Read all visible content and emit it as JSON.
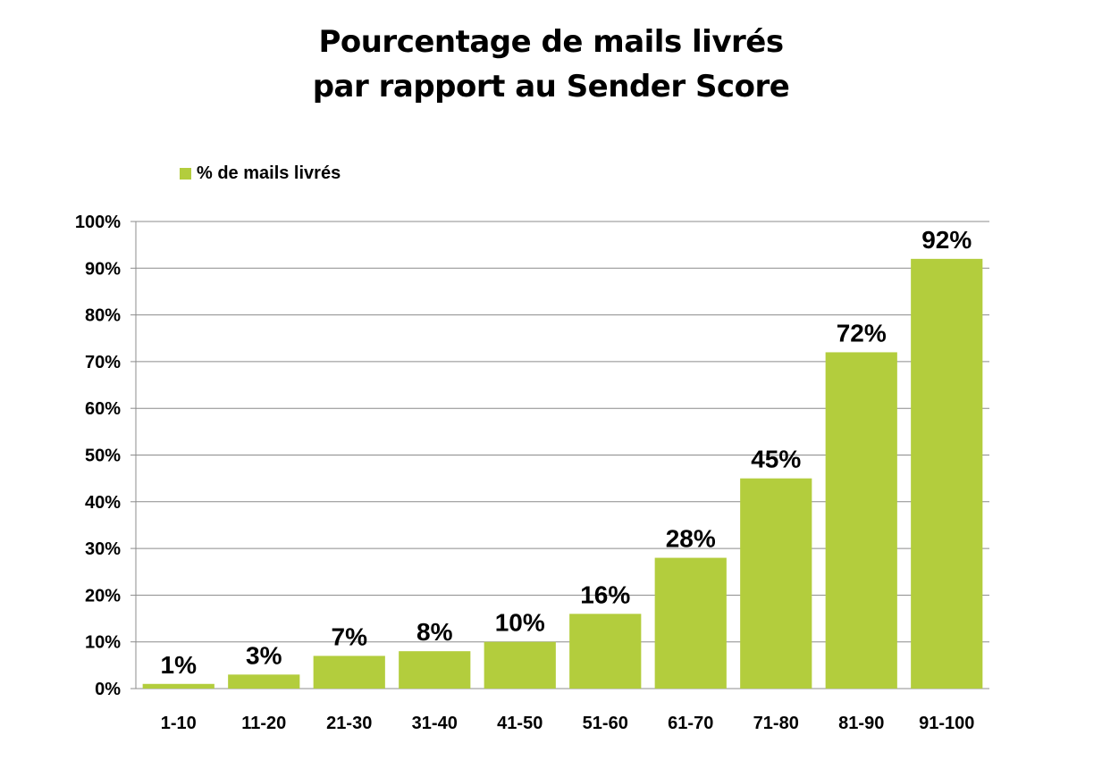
{
  "chart_data": {
    "type": "bar",
    "title_lines": [
      "Pourcentage de mails livrés",
      "par rapport au Sender Score"
    ],
    "xlabel": "",
    "ylabel": "",
    "categories": [
      "1-10",
      "11-20",
      "21-30",
      "31-40",
      "41-50",
      "51-60",
      "61-70",
      "71-80",
      "81-90",
      "91-100"
    ],
    "series": [
      {
        "name": "% de mails livrés",
        "values": [
          1,
          3,
          7,
          8,
          10,
          16,
          28,
          45,
          72,
          92
        ],
        "data_labels": [
          "1%",
          "3%",
          "7%",
          "8%",
          "10%",
          "16%",
          "28%",
          "45%",
          "72%",
          "92%"
        ],
        "color": "#b3cd3d"
      }
    ],
    "ylim": [
      0,
      100
    ],
    "y_ticks": [
      0,
      10,
      20,
      30,
      40,
      50,
      60,
      70,
      80,
      90,
      100
    ],
    "y_tick_labels": [
      "0%",
      "10%",
      "20%",
      "30%",
      "40%",
      "50%",
      "60%",
      "70%",
      "80%",
      "90%",
      "100%"
    ],
    "grid": true,
    "legend_position": "top-left"
  }
}
